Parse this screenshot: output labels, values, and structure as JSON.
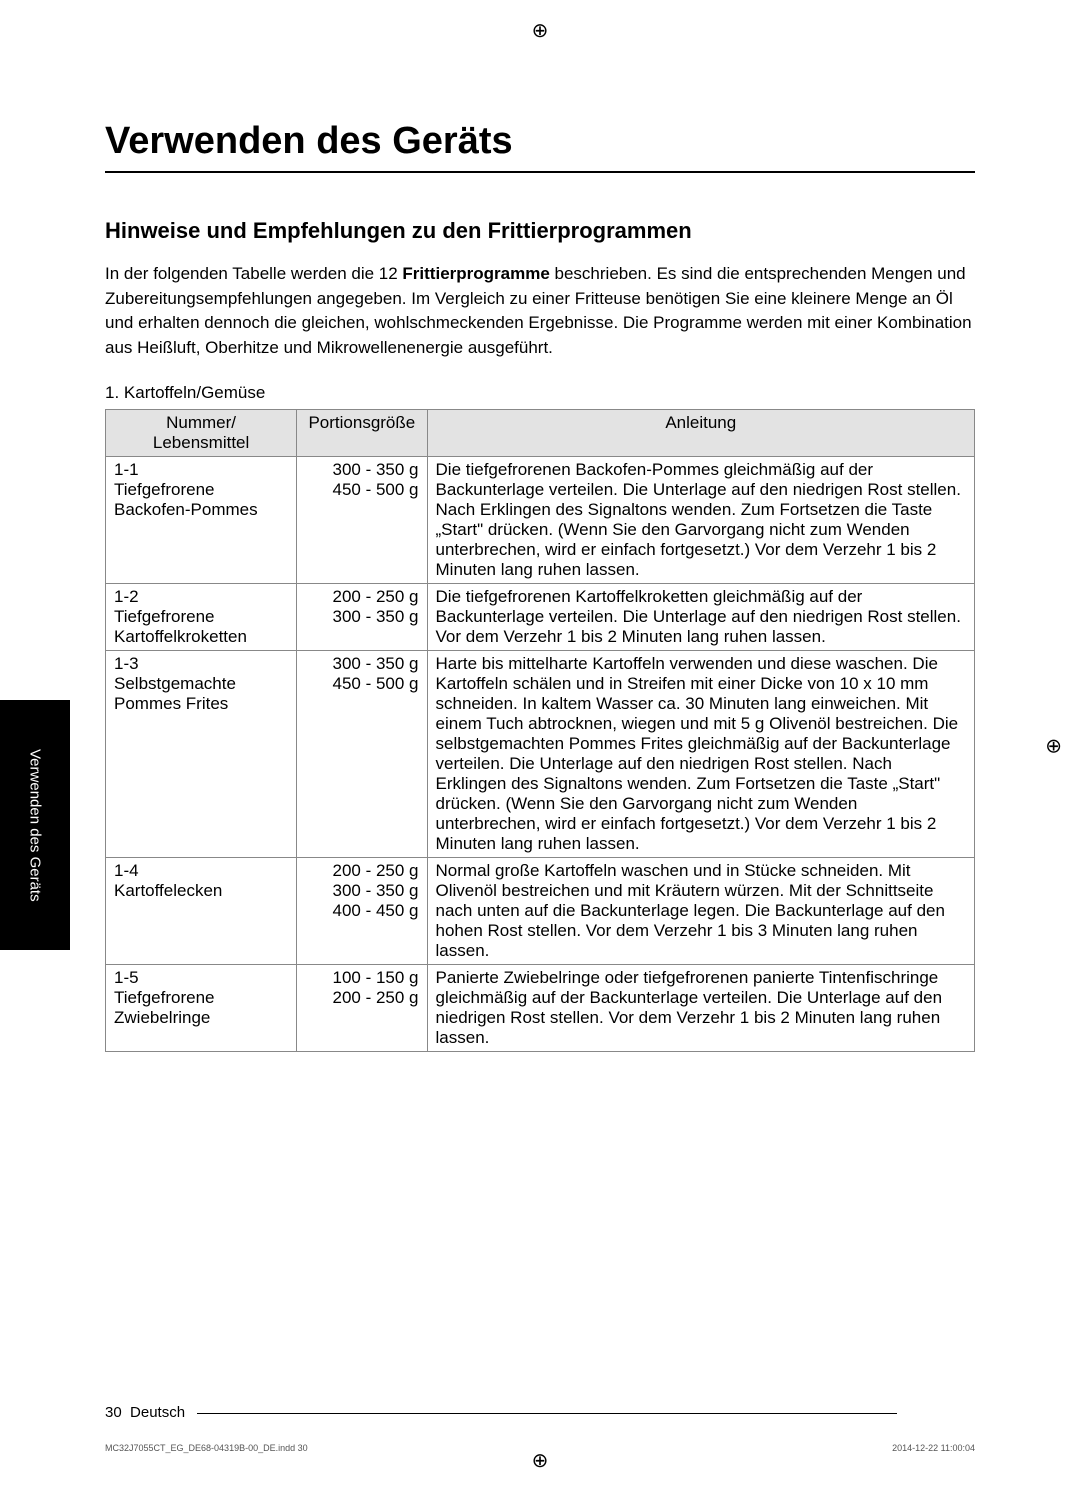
{
  "page": {
    "main_title": "Verwenden des Geräts",
    "section_title": "Hinweise und Empfehlungen zu den Frittierprogrammen",
    "intro_prefix": "In der folgenden Tabelle werden die 12 ",
    "intro_bold": "Frittierprogramme",
    "intro_suffix": " beschrieben. Es sind die entsprechenden Mengen und Zubereitungsempfehlungen angegeben. Im Vergleich zu einer Fritteuse benötigen Sie eine kleinere Menge an Öl und erhalten dennoch die gleichen, wohlschmeckenden Ergebnisse. Die Programme werden mit einer Kombination aus Heißluft, Oberhitze und Mikrowellenenergie ausgeführt.",
    "sub_heading": "1. Kartoffeln/Gemüse",
    "side_tab": "Verwenden des Geräts",
    "page_number": "30",
    "language_label": "Deutsch",
    "tiny_footer_left": "MC32J7055CT_EG_DE68-04319B-00_DE.indd   30",
    "tiny_footer_right": "2014-12-22   11:00:04"
  },
  "table": {
    "headers": {
      "num": "Nummer/\nLebensmittel",
      "portion": "Portionsgröße",
      "instr": "Anleitung"
    },
    "rows": [
      {
        "num": "1-1\nTiefgefrorene Backofen-Pommes",
        "portion": "300 - 350 g\n450 - 500 g",
        "instr": "Die tiefgefrorenen Backofen-Pommes gleichmäßig auf der Backunterlage verteilen. Die Unterlage auf den niedrigen Rost stellen. Nach Erklingen des Signaltons wenden. Zum Fortsetzen die Taste „Start\" drücken. (Wenn Sie den Garvorgang nicht zum Wenden unterbrechen, wird er einfach fortgesetzt.) Vor dem Verzehr 1 bis 2 Minuten lang ruhen lassen."
      },
      {
        "num": "1-2\nTiefgefrorene Kartoffelkroketten",
        "portion": "200 - 250 g\n300 - 350 g",
        "instr": "Die tiefgefrorenen Kartoffelkroketten gleichmäßig auf der Backunterlage verteilen. Die Unterlage auf den niedrigen Rost stellen. Vor dem Verzehr 1 bis 2 Minuten lang ruhen lassen."
      },
      {
        "num": "1-3\nSelbstgemachte Pommes Frites",
        "portion": "300 - 350 g\n450 - 500 g",
        "instr": "Harte bis mittelharte Kartoffeln verwenden und diese waschen. Die Kartoffeln schälen und in Streifen mit einer Dicke von 10 x 10 mm schneiden. In kaltem Wasser ca. 30 Minuten lang einweichen. Mit einem Tuch abtrocknen, wiegen und mit 5 g Olivenöl bestreichen. Die selbstgemachten Pommes Frites gleichmäßig auf der Backunterlage verteilen. Die Unterlage auf den niedrigen Rost stellen. Nach Erklingen des Signaltons wenden. Zum Fortsetzen die Taste „Start\" drücken. (Wenn Sie den Garvorgang nicht zum Wenden unterbrechen, wird er einfach fortgesetzt.) Vor dem Verzehr 1 bis 2 Minuten lang ruhen lassen."
      },
      {
        "num": "1-4\nKartoffelecken",
        "portion": "200 - 250 g\n300 - 350 g\n400 - 450 g",
        "instr": "Normal große Kartoffeln waschen und in Stücke schneiden. Mit Olivenöl bestreichen und mit Kräutern würzen. Mit der Schnittseite nach unten auf die Backunterlage legen. Die Backunterlage auf den hohen Rost stellen. Vor dem Verzehr 1 bis 3 Minuten lang ruhen lassen."
      },
      {
        "num": "1-5\nTiefgefrorene Zwiebelringe",
        "portion": "100 - 150 g\n200 - 250 g",
        "instr": "Panierte Zwiebelringe oder tiefgefrorenen panierte Tintenfischringe gleichmäßig auf der Backunterlage verteilen. Die Unterlage auf den niedrigen Rost stellen. Vor dem Verzehr 1 bis 2 Minuten lang ruhen lassen."
      }
    ]
  },
  "colors": {
    "header_bg": "#e3e3e3",
    "border": "#888888",
    "text": "#000000",
    "side_tab_bg": "#000000",
    "side_tab_text": "#ffffff"
  }
}
